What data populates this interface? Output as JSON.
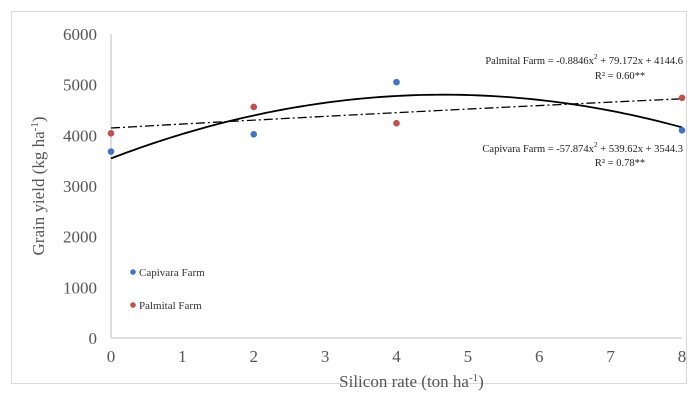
{
  "chart_data": {
    "type": "scatter",
    "xlabel": "Silicon rate (ton ha",
    "xlabel_sup": "-1",
    "xlabel_end": ")",
    "ylabel": "Grain yield (kg ha",
    "ylabel_sup": "-1",
    "ylabel_end": ")",
    "xlim": [
      0,
      8
    ],
    "ylim": [
      0,
      6000
    ],
    "x_ticks": [
      "0",
      "1",
      "2",
      "3",
      "4",
      "5",
      "6",
      "7",
      "8"
    ],
    "y_ticks": [
      "0",
      "1000",
      "2000",
      "3000",
      "4000",
      "5000",
      "6000"
    ],
    "grid": "off",
    "legend_position": "bottom-left",
    "series": [
      {
        "name": "Capivara Farm",
        "color": "#4472c4",
        "points": [
          [
            0,
            3680
          ],
          [
            2,
            4020
          ],
          [
            4,
            5050
          ],
          [
            8,
            4100
          ]
        ],
        "trend": {
          "type": "quadratic",
          "a": -57.874,
          "b": 539.62,
          "c": 3544.3,
          "style": "solid"
        },
        "equation": "Capivara Farm = -57.874x",
        "equation_sup": "2",
        "equation_rest": " + 539.62x  + 3544.3",
        "r2": "R² = 0.78**"
      },
      {
        "name": "Palmital Farm",
        "color": "#c0504d",
        "points": [
          [
            0,
            4040
          ],
          [
            2,
            4560
          ],
          [
            4,
            4240
          ],
          [
            8,
            4740
          ]
        ],
        "trend": {
          "type": "quadratic",
          "a": -0.8846,
          "b": 79.172,
          "c": 4144.6,
          "style": "dashdot"
        },
        "equation": "Palmital Farm = -0.8846x",
        "equation_sup": "2",
        "equation_rest": " + 79.172x  + 4144.6",
        "r2": "R² = 0.60**"
      }
    ]
  }
}
